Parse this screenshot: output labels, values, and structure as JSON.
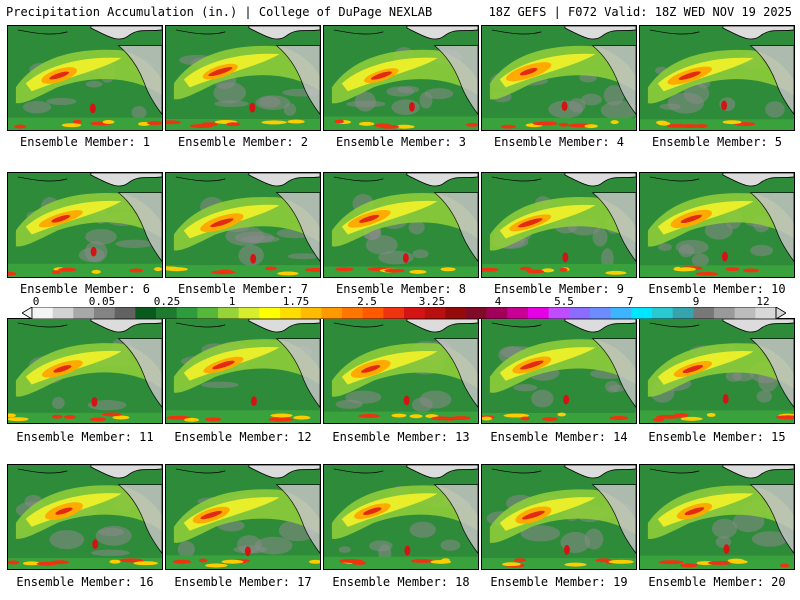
{
  "header": {
    "title_left": "Precipitation Accumulation (in.) | College of DuPage NEXLAB",
    "title_right": "18Z GEFS | F072 Valid: 18Z WED NOV 19 2025"
  },
  "members": [
    "Ensemble Member: 1",
    "Ensemble Member: 2",
    "Ensemble Member: 3",
    "Ensemble Member: 4",
    "Ensemble Member: 5",
    "Ensemble Member: 6",
    "Ensemble Member: 7",
    "Ensemble Member: 8",
    "Ensemble Member: 9",
    "Ensemble Member: 10",
    "Ensemble Member: 11",
    "Ensemble Member: 12",
    "Ensemble Member: 13",
    "Ensemble Member: 14",
    "Ensemble Member: 15",
    "Ensemble Member: 16",
    "Ensemble Member: 17",
    "Ensemble Member: 18",
    "Ensemble Member: 19",
    "Ensemble Member: 20"
  ],
  "colorbar": {
    "labels": [
      "0",
      "0.05",
      "0.25",
      "1",
      "1.75",
      "2.5",
      "3.25",
      "4",
      "5.5",
      "7",
      "9",
      "12"
    ],
    "colors": [
      "#f4f4f4",
      "#d2d2d2",
      "#a8a8a8",
      "#848484",
      "#626262",
      "#0a5a1e",
      "#1e7a2e",
      "#2e9c3c",
      "#56b83a",
      "#96d43a",
      "#d6ee2e",
      "#ffff00",
      "#ffdd00",
      "#ffbb00",
      "#ff9900",
      "#ff7700",
      "#ff5a00",
      "#ee3311",
      "#d41414",
      "#b80f0f",
      "#960a0a",
      "#800a28",
      "#a0005a",
      "#c80096",
      "#e600e6",
      "#c04cff",
      "#8c6cff",
      "#6c8cff",
      "#3cb4ff",
      "#00e6ff",
      "#2ac8d0",
      "#36a4ac",
      "#787878",
      "#9a9a9a",
      "#bcbcbc",
      "#d8d8d8"
    ]
  }
}
